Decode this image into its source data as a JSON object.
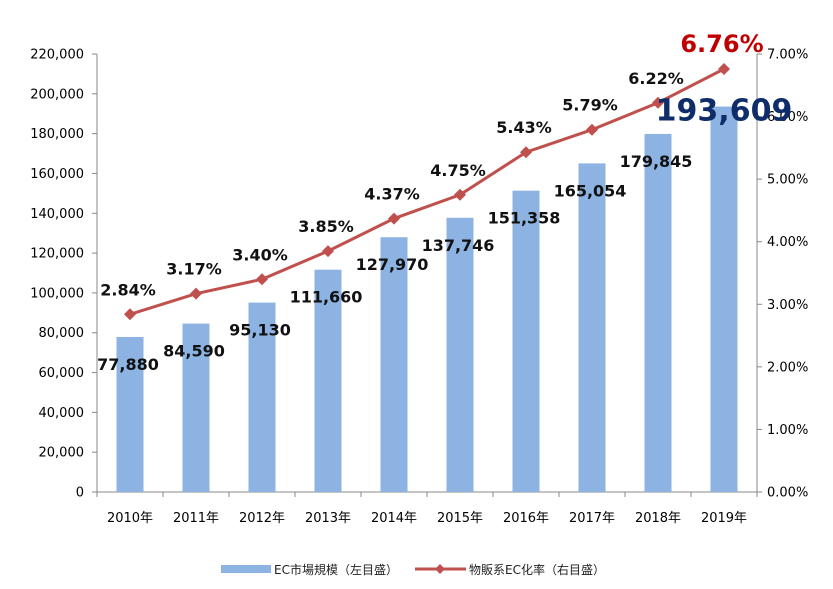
{
  "chart_data": {
    "type": "bar",
    "categories": [
      "2010年",
      "2011年",
      "2012年",
      "2013年",
      "2014年",
      "2015年",
      "2016年",
      "2017年",
      "2018年",
      "2019年"
    ],
    "series": [
      {
        "name": "EC市場規模（左目盛）",
        "type": "bar",
        "axis": "left",
        "values": [
          77880,
          84590,
          95130,
          111660,
          127970,
          137746,
          151358,
          165054,
          179845,
          193609
        ],
        "labels": [
          "77,880",
          "84,590",
          "95,130",
          "111,660",
          "127,970",
          "137,746",
          "151,358",
          "165,054",
          "179,845",
          "193,609"
        ],
        "color": "#8DB3E2"
      },
      {
        "name": "物販系EC化率（右目盛）",
        "type": "line",
        "axis": "right",
        "values": [
          2.84,
          3.17,
          3.4,
          3.85,
          4.37,
          4.75,
          5.43,
          5.79,
          6.22,
          6.76
        ],
        "labels": [
          "2.84%",
          "3.17%",
          "3.40%",
          "3.85%",
          "4.37%",
          "4.75%",
          "5.43%",
          "5.79%",
          "6.22%",
          "6.76%"
        ],
        "color": "#C0504D"
      }
    ],
    "ylim_left": [
      0,
      220000
    ],
    "yticks_left": [
      "0",
      "20,000",
      "40,000",
      "60,000",
      "80,000",
      "100,000",
      "120,000",
      "140,000",
      "160,000",
      "180,000",
      "200,000",
      "220,000"
    ],
    "ylim_right": [
      0,
      7
    ],
    "yticks_right": [
      "0.00%",
      "1.00%",
      "2.00%",
      "3.00%",
      "4.00%",
      "5.00%",
      "6.00%",
      "7.00%"
    ],
    "highlight_colors": {
      "last_bar_label": "#0F2D6B",
      "last_line_label": "#C00000"
    },
    "legend_position": "bottom",
    "grid": false
  }
}
